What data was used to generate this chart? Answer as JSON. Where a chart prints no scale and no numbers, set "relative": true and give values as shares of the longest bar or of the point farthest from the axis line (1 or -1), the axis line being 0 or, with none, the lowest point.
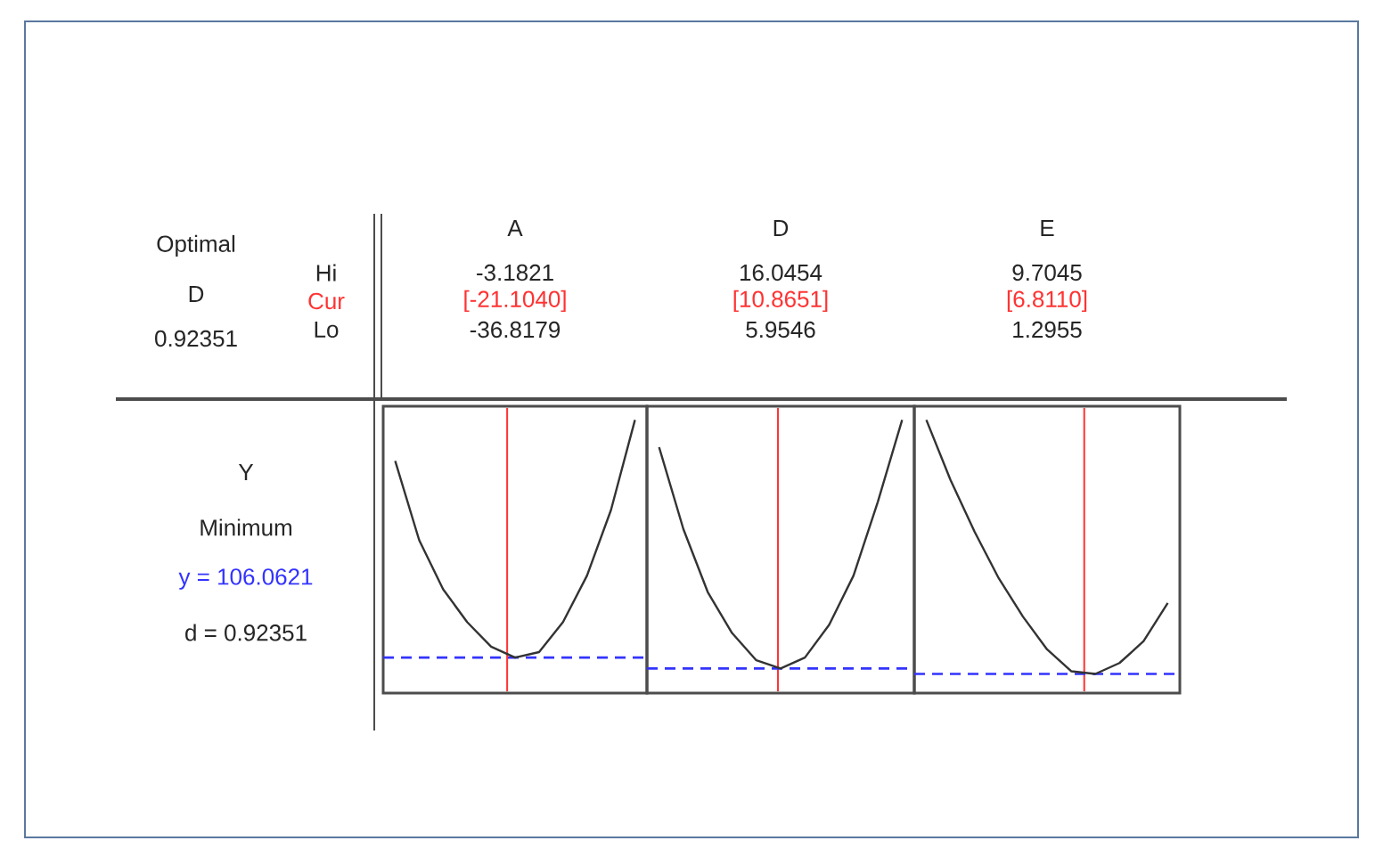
{
  "chart_data": [
    {
      "type": "other",
      "annotations": [
        "Optimal",
        "D",
        "0.92351",
        "Hi",
        "Cur",
        "Lo",
        "Y",
        "Minimum",
        "y = 106.0621",
        "d = 0.92351"
      ]
    },
    {
      "type": "line",
      "title": "A",
      "categories": [
        null,
        null,
        null,
        null,
        null,
        null,
        null,
        null,
        null,
        null,
        null
      ],
      "values": [
        0.85,
        0.56,
        0.38,
        0.26,
        0.17,
        0.13,
        0.15,
        0.26,
        0.43,
        0.67,
        1.0
      ],
      "color": "#333333",
      "relative": true,
      "annotations": [
        "-3.1821",
        "[-21.1040]",
        "-36.8179"
      ],
      "ref_lines": [
        {
          "axis": "y",
          "value": 0.13,
          "color": "#3333ff",
          "line_style": "dashed"
        }
      ]
    },
    {
      "type": "line",
      "title": "D",
      "categories": [
        null,
        null,
        null,
        null,
        null,
        null,
        null,
        null,
        null,
        null,
        null
      ],
      "values": [
        0.9,
        0.6,
        0.37,
        0.22,
        0.12,
        0.09,
        0.13,
        0.25,
        0.43,
        0.7,
        1.0
      ],
      "color": "#333333",
      "relative": true,
      "annotations": [
        "16.0454",
        "[10.8651]",
        "5.9546"
      ],
      "ref_lines": [
        {
          "axis": "y",
          "value": 0.09,
          "color": "#3333ff",
          "line_style": "dashed"
        }
      ]
    },
    {
      "type": "line",
      "title": "E",
      "categories": [
        null,
        null,
        null,
        null,
        null,
        null,
        null,
        null,
        null,
        null,
        null
      ],
      "values": [
        1.0,
        0.78,
        0.59,
        0.42,
        0.28,
        0.16,
        0.08,
        0.07,
        0.11,
        0.19,
        0.33
      ],
      "color": "#333333",
      "relative": true,
      "annotations": [
        "9.7045",
        "[6.8110]",
        "1.2955"
      ],
      "ref_lines": [
        {
          "axis": "y",
          "value": 0.07,
          "color": "#3333ff",
          "line_style": "dashed"
        }
      ]
    }
  ]
}
